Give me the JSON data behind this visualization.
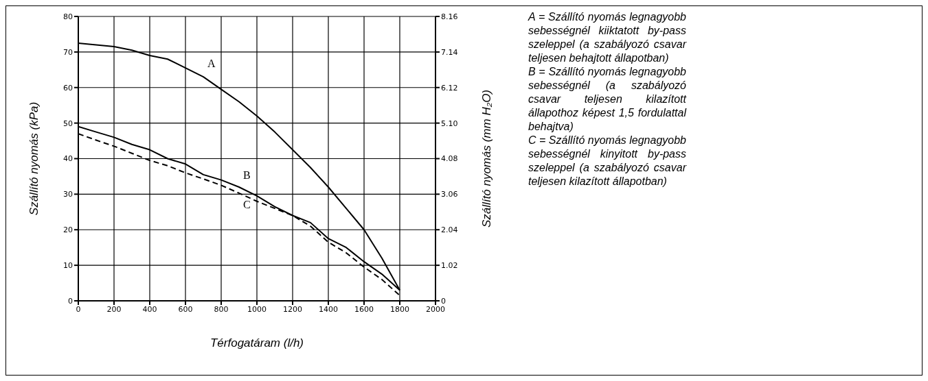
{
  "chart_data": {
    "type": "line",
    "xlabel": "Térfogatáram (l/h)",
    "ylabel": "Szállító nyomás (kPa)",
    "y2label": "Szállító nyomás (mm H₂O)",
    "x": [
      0,
      100,
      200,
      300,
      400,
      500,
      600,
      700,
      800,
      900,
      1000,
      1100,
      1200,
      1300,
      1400,
      1500,
      1600,
      1700,
      1800
    ],
    "series": [
      {
        "name": "A",
        "color": "#000000",
        "line_style": "solid",
        "values": [
          72.5,
          72,
          71.5,
          70.5,
          69,
          68,
          65.5,
          63,
          59.5,
          56,
          52,
          47.5,
          42.5,
          37.5,
          32,
          26,
          20,
          12,
          3
        ]
      },
      {
        "name": "B",
        "color": "#000000",
        "line_style": "solid",
        "values": [
          49,
          47.5,
          46,
          44,
          42.5,
          40,
          38.5,
          35.5,
          34,
          32,
          29.5,
          26.5,
          24,
          22,
          17.5,
          15,
          11,
          7.5,
          3
        ]
      },
      {
        "name": "C",
        "color": "#000000",
        "line_style": "dashed",
        "values": [
          47,
          45.2,
          43.5,
          41.5,
          39.5,
          38,
          36,
          34.3,
          32.5,
          30.3,
          28,
          26,
          24,
          21,
          16.5,
          13.5,
          9.5,
          6,
          1.5
        ]
      }
    ],
    "xlim": [
      0,
      2000
    ],
    "xticks": [
      0,
      200,
      400,
      600,
      800,
      1000,
      1200,
      1400,
      1600,
      1800,
      2000
    ],
    "ylim": [
      0,
      80
    ],
    "yticks": [
      0,
      10,
      20,
      30,
      40,
      50,
      60,
      70,
      80
    ],
    "y2lim": [
      0,
      8.16
    ],
    "y2ticks": [
      {
        "value": 0,
        "label": "0"
      },
      {
        "value": 1.02,
        "label": "1.02"
      },
      {
        "value": 2.04,
        "label": "2.04"
      },
      {
        "value": 3.06,
        "label": "3.06"
      },
      {
        "value": 4.08,
        "label": "4.08"
      },
      {
        "value": 5.1,
        "label": "5.10"
      },
      {
        "value": 6.12,
        "label": "6.12"
      },
      {
        "value": 7.14,
        "label": "7.14"
      },
      {
        "value": 8.16,
        "label": "8.16"
      }
    ],
    "grid": true,
    "marker": "none",
    "annotations": [
      "A = Szállító nyomás legnagyobb sebességnél kiiktatott by-pass szeleppel (a szabályozó csavar teljesen behajtott állapotban)",
      "B = Szállító nyomás legnagyobb sebességnél (a szabályozó csavar teljesen kilazított állapothoz képest 1,5 fordulattal behajtva)",
      "C = Szállító nyomás legnagyobb sebességnél kinyitott by-pass szeleppel (a szabályozó csavar teljesen kilazított állapotban)"
    ]
  }
}
